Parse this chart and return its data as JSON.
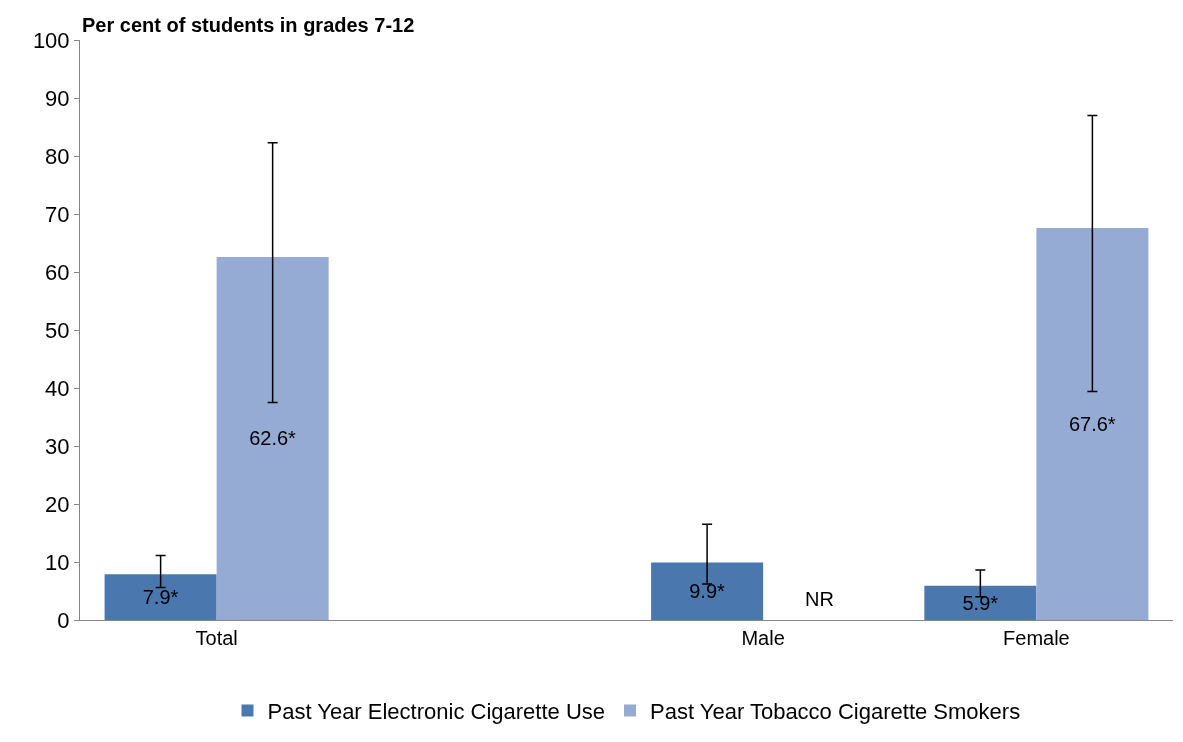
{
  "chart_data": {
    "type": "bar",
    "ylabel": "Per cent of students in grades 7-12",
    "categories": [
      "Total",
      null,
      "Male",
      "Female"
    ],
    "series": [
      {
        "name": "Past Year Electronic Cigarette Use",
        "color": "#4a78ae",
        "values": [
          7.9,
          null,
          9.9,
          5.9
        ],
        "errors": [
          [
            5.6,
            11.1
          ],
          null,
          [
            6.2,
            16.5
          ],
          [
            4.0,
            8.6
          ]
        ],
        "value_labels": [
          "7.9*",
          null,
          "9.9*",
          "5.9*"
        ]
      },
      {
        "name": "Past Year Tobacco Cigarette Smokers",
        "color": "#95abd3",
        "values": [
          62.6,
          null,
          null,
          67.6
        ],
        "errors": [
          [
            37.5,
            82.3
          ],
          null,
          null,
          [
            39.4,
            87.0
          ]
        ],
        "value_labels": [
          "62.6*",
          null,
          "NR",
          "67.6*"
        ]
      }
    ],
    "ylim": [
      0,
      100
    ],
    "yticks": [
      0,
      10,
      20,
      30,
      40,
      50,
      60,
      70,
      80,
      90,
      100
    ],
    "grid": false,
    "legend": "bottom"
  }
}
